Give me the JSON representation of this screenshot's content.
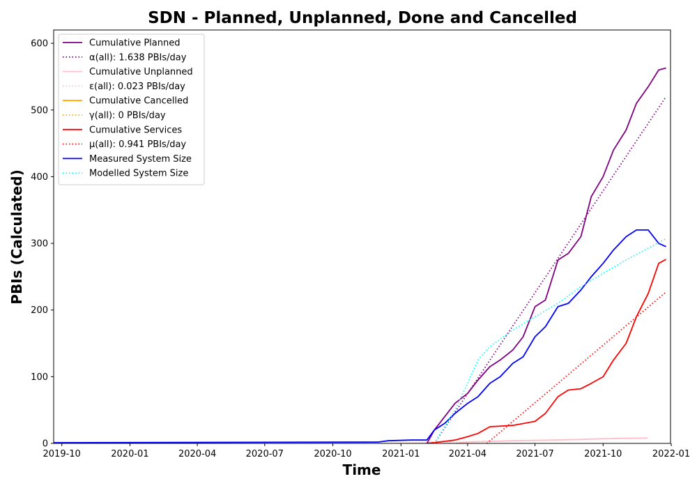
{
  "chart_data": {
    "type": "line",
    "title": "SDN - Planned, Unplanned, Done  and Cancelled",
    "xlabel": "Time",
    "ylabel": "PBIs (Calculated)",
    "x_axis_type": "date",
    "xlim": [
      "2019-09-20",
      "2021-12-31"
    ],
    "ylim": [
      0,
      620
    ],
    "x_ticks": [
      "2019-10",
      "2020-01",
      "2020-04",
      "2020-07",
      "2020-10",
      "2021-01",
      "2021-04",
      "2021-07",
      "2021-10",
      "2022-01"
    ],
    "y_ticks": [
      0,
      100,
      200,
      300,
      400,
      500,
      600
    ],
    "grid": false,
    "legend_position": "top-left",
    "series": [
      {
        "name": "Cumulative Planned",
        "style": "solid",
        "color": "#800080",
        "points": [
          [
            "2021-02-05",
            0
          ],
          [
            "2021-02-15",
            20
          ],
          [
            "2021-03-01",
            40
          ],
          [
            "2021-03-15",
            60
          ],
          [
            "2021-04-01",
            75
          ],
          [
            "2021-04-15",
            95
          ],
          [
            "2021-05-01",
            115
          ],
          [
            "2021-05-15",
            125
          ],
          [
            "2021-06-01",
            140
          ],
          [
            "2021-06-15",
            160
          ],
          [
            "2021-07-01",
            205
          ],
          [
            "2021-07-15",
            215
          ],
          [
            "2021-08-01",
            275
          ],
          [
            "2021-08-15",
            285
          ],
          [
            "2021-09-01",
            310
          ],
          [
            "2021-09-15",
            370
          ],
          [
            "2021-10-01",
            400
          ],
          [
            "2021-10-15",
            440
          ],
          [
            "2021-11-01",
            470
          ],
          [
            "2021-11-15",
            510
          ],
          [
            "2021-12-01",
            535
          ],
          [
            "2021-12-15",
            560
          ],
          [
            "2021-12-25",
            563
          ]
        ]
      },
      {
        "name": "α(all): 1.638 PBIs/day",
        "style": "dotted",
        "color": "#800080",
        "points": [
          [
            "2021-02-15",
            0
          ],
          [
            "2021-12-25",
            520
          ]
        ]
      },
      {
        "name": "Cumulative Unplanned",
        "style": "solid",
        "color": "#ffc0cb",
        "points": [
          [
            "2021-03-15",
            0
          ],
          [
            "2021-04-01",
            2
          ],
          [
            "2021-06-01",
            4
          ],
          [
            "2021-08-01",
            5
          ],
          [
            "2021-10-01",
            7
          ],
          [
            "2021-11-30",
            8
          ]
        ]
      },
      {
        "name": "ε(all): 0.023 PBIs/day",
        "style": "dotted",
        "color": "#ffc0cb",
        "points": [
          [
            "2020-12-01",
            0
          ],
          [
            "2021-11-30",
            8
          ]
        ]
      },
      {
        "name": "Cumulative Cancelled",
        "style": "solid",
        "color": "#ffa500",
        "points": []
      },
      {
        "name": "γ(all): 0 PBIs/day",
        "style": "dotted",
        "color": "#ffa500",
        "points": []
      },
      {
        "name": "Cumulative Services",
        "style": "solid",
        "color": "#ff0000",
        "points": [
          [
            "2021-02-05",
            0
          ],
          [
            "2021-03-01",
            3
          ],
          [
            "2021-03-15",
            5
          ],
          [
            "2021-04-01",
            10
          ],
          [
            "2021-04-15",
            15
          ],
          [
            "2021-05-01",
            25
          ],
          [
            "2021-06-01",
            27
          ],
          [
            "2021-07-01",
            33
          ],
          [
            "2021-07-15",
            45
          ],
          [
            "2021-08-01",
            70
          ],
          [
            "2021-08-15",
            80
          ],
          [
            "2021-09-01",
            82
          ],
          [
            "2021-09-15",
            90
          ],
          [
            "2021-10-01",
            100
          ],
          [
            "2021-10-15",
            125
          ],
          [
            "2021-11-01",
            150
          ],
          [
            "2021-11-15",
            190
          ],
          [
            "2021-12-01",
            225
          ],
          [
            "2021-12-15",
            270
          ],
          [
            "2021-12-25",
            276
          ]
        ]
      },
      {
        "name": "μ(all): 0.941 PBIs/day",
        "style": "dotted",
        "color": "#ff0000",
        "points": [
          [
            "2021-04-27",
            0
          ],
          [
            "2021-12-25",
            227
          ]
        ]
      },
      {
        "name": "Measured System Size",
        "style": "solid",
        "color": "#0000ff",
        "points": [
          [
            "2019-09-20",
            1
          ],
          [
            "2020-12-01",
            2
          ],
          [
            "2020-12-15",
            4
          ],
          [
            "2021-01-15",
            5
          ],
          [
            "2021-02-05",
            5
          ],
          [
            "2021-02-15",
            20
          ],
          [
            "2021-03-01",
            30
          ],
          [
            "2021-03-15",
            45
          ],
          [
            "2021-04-01",
            60
          ],
          [
            "2021-04-15",
            70
          ],
          [
            "2021-05-01",
            90
          ],
          [
            "2021-05-15",
            100
          ],
          [
            "2021-06-01",
            120
          ],
          [
            "2021-06-15",
            130
          ],
          [
            "2021-07-01",
            160
          ],
          [
            "2021-07-15",
            175
          ],
          [
            "2021-08-01",
            205
          ],
          [
            "2021-08-15",
            210
          ],
          [
            "2021-09-01",
            230
          ],
          [
            "2021-09-15",
            250
          ],
          [
            "2021-10-01",
            270
          ],
          [
            "2021-10-15",
            290
          ],
          [
            "2021-11-01",
            310
          ],
          [
            "2021-11-15",
            320
          ],
          [
            "2021-12-01",
            320
          ],
          [
            "2021-12-15",
            300
          ],
          [
            "2021-12-25",
            295
          ]
        ]
      },
      {
        "name": "Modelled System Size",
        "style": "dotted",
        "color": "#00ffff",
        "points": [
          [
            "2021-02-15",
            0
          ],
          [
            "2021-03-15",
            50
          ],
          [
            "2021-04-01",
            90
          ],
          [
            "2021-04-15",
            125
          ],
          [
            "2021-05-01",
            145
          ],
          [
            "2021-06-01",
            170
          ],
          [
            "2021-07-01",
            190
          ],
          [
            "2021-08-01",
            210
          ],
          [
            "2021-09-01",
            235
          ],
          [
            "2021-10-01",
            255
          ],
          [
            "2021-11-01",
            275
          ],
          [
            "2021-12-25",
            307
          ]
        ]
      }
    ]
  }
}
